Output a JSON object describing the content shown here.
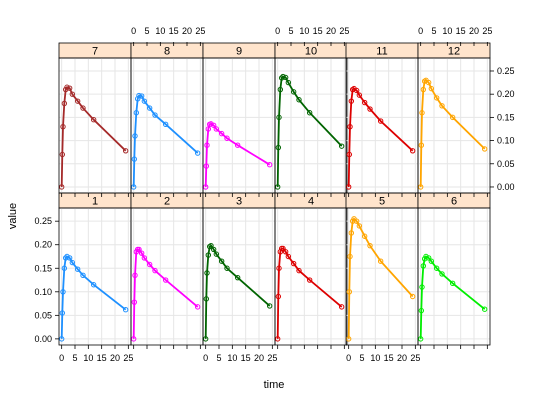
{
  "chart_data": {
    "type": "line",
    "title": "",
    "xlabel": "time",
    "ylabel": "value",
    "xlim": [
      -1,
      26
    ],
    "ylim": [
      -0.013,
      0.278
    ],
    "x_ticks": [
      0,
      5,
      10,
      15,
      20,
      25
    ],
    "x_tick_labels": [
      "0",
      "5",
      "10",
      "15",
      "20",
      "25"
    ],
    "y_ticks": [
      0.0,
      0.05,
      0.1,
      0.15,
      0.2,
      0.25
    ],
    "y_tick_labels": [
      "0.00",
      "0.05",
      "0.10",
      "0.15",
      "0.20",
      "0.25"
    ],
    "grid": true,
    "strip_color": "#ffe4cc",
    "x": [
      0,
      0.25,
      0.5,
      1,
      1.5,
      2,
      3,
      4,
      6,
      8,
      12,
      24
    ],
    "panels": [
      {
        "label": "1",
        "color": "#1e90ff",
        "values": [
          0,
          0.055,
          0.1,
          0.15,
          0.172,
          0.175,
          0.172,
          0.162,
          0.148,
          0.135,
          0.115,
          0.062
        ]
      },
      {
        "label": "2",
        "color": "#ff00ff",
        "values": [
          0,
          0.078,
          0.135,
          0.185,
          0.19,
          0.19,
          0.182,
          0.172,
          0.158,
          0.145,
          0.125,
          0.068
        ]
      },
      {
        "label": "3",
        "color": "#006400",
        "values": [
          0,
          0.085,
          0.14,
          0.178,
          0.196,
          0.198,
          0.19,
          0.18,
          0.165,
          0.15,
          0.13,
          0.07
        ]
      },
      {
        "label": "4",
        "color": "#dd0000",
        "values": [
          0,
          0.09,
          0.15,
          0.185,
          0.192,
          0.192,
          0.185,
          0.175,
          0.16,
          0.145,
          0.125,
          0.068
        ]
      },
      {
        "label": "5",
        "color": "#ffa500",
        "values": [
          0,
          0.1,
          0.175,
          0.225,
          0.25,
          0.255,
          0.25,
          0.24,
          0.218,
          0.198,
          0.165,
          0.09
        ]
      },
      {
        "label": "6",
        "color": "#00ee00",
        "values": [
          0,
          0.06,
          0.11,
          0.155,
          0.17,
          0.175,
          0.172,
          0.165,
          0.15,
          0.138,
          0.118,
          0.063
        ]
      },
      {
        "label": "7",
        "color": "#a52a2a",
        "values": [
          0,
          0.07,
          0.13,
          0.18,
          0.21,
          0.215,
          0.213,
          0.2,
          0.185,
          0.17,
          0.145,
          0.078
        ]
      },
      {
        "label": "8",
        "color": "#1e90ff",
        "values": [
          0,
          0.06,
          0.11,
          0.16,
          0.19,
          0.197,
          0.196,
          0.185,
          0.17,
          0.155,
          0.135,
          0.073
        ]
      },
      {
        "label": "9",
        "color": "#ff00ff",
        "values": [
          0,
          0.045,
          0.09,
          0.125,
          0.135,
          0.136,
          0.133,
          0.125,
          0.115,
          0.105,
          0.09,
          0.048
        ]
      },
      {
        "label": "10",
        "color": "#006400",
        "values": [
          0,
          0.085,
          0.15,
          0.21,
          0.235,
          0.238,
          0.236,
          0.225,
          0.205,
          0.188,
          0.16,
          0.088
        ]
      },
      {
        "label": "11",
        "color": "#dd0000",
        "values": [
          0,
          0.07,
          0.13,
          0.185,
          0.21,
          0.212,
          0.208,
          0.198,
          0.182,
          0.168,
          0.142,
          0.078
        ]
      },
      {
        "label": "12",
        "color": "#ffa500",
        "values": [
          0,
          0.09,
          0.16,
          0.21,
          0.228,
          0.23,
          0.225,
          0.212,
          0.192,
          0.175,
          0.15,
          0.082
        ]
      }
    ]
  }
}
